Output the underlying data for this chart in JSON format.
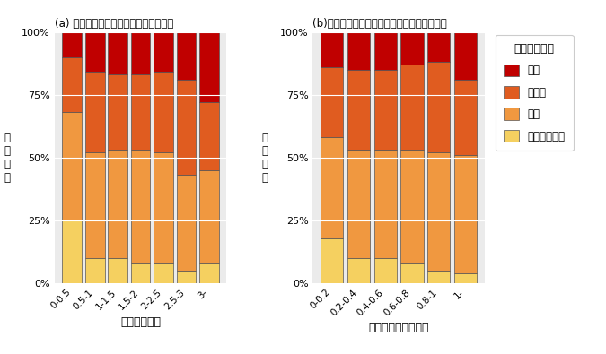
{
  "panel_a": {
    "title": "(a) 目撃効率ごとのシカによる農業被害",
    "xlabel": "シカ目撃効率",
    "categories": [
      "0-0.5",
      "0.5-1",
      "1-1.5",
      "1.5-2",
      "2-2.5",
      "2.5-3",
      "3-"
    ],
    "hotondo_nai": [
      0.25,
      0.1,
      0.1,
      0.08,
      0.08,
      0.05,
      0.08
    ],
    "keibii": [
      0.43,
      0.42,
      0.43,
      0.45,
      0.44,
      0.38,
      0.37
    ],
    "ookii": [
      0.22,
      0.32,
      0.3,
      0.3,
      0.32,
      0.38,
      0.27
    ],
    "shinkok": [
      0.1,
      0.16,
      0.17,
      0.17,
      0.16,
      0.19,
      0.28
    ]
  },
  "panel_b": {
    "title": "(b)筱わな捕獲効率ごとのシカによる農業被害",
    "xlabel": "シカ筱わな捕獲効率",
    "categories": [
      "0-0.2",
      "0.2-0.4",
      "0.4-0.6",
      "0.6-0.8",
      "0.8-1",
      "1-"
    ],
    "hotondo_nai": [
      0.18,
      0.1,
      0.1,
      0.08,
      0.05,
      0.04
    ],
    "keibii": [
      0.4,
      0.43,
      0.43,
      0.45,
      0.47,
      0.47
    ],
    "ookii": [
      0.28,
      0.32,
      0.32,
      0.34,
      0.36,
      0.3
    ],
    "shinkok": [
      0.14,
      0.15,
      0.15,
      0.13,
      0.12,
      0.19
    ]
  },
  "legend_title": "農業被害程度",
  "colors": {
    "shinkok": "#C00000",
    "ookii": "#E05C20",
    "keibii": "#F09840",
    "hotondo_nai": "#F5D060"
  },
  "bg_color": "#EBEBEB",
  "bar_edge_color": "#555555",
  "bar_edge_width": 0.5,
  "ylabel": "割合比率"
}
